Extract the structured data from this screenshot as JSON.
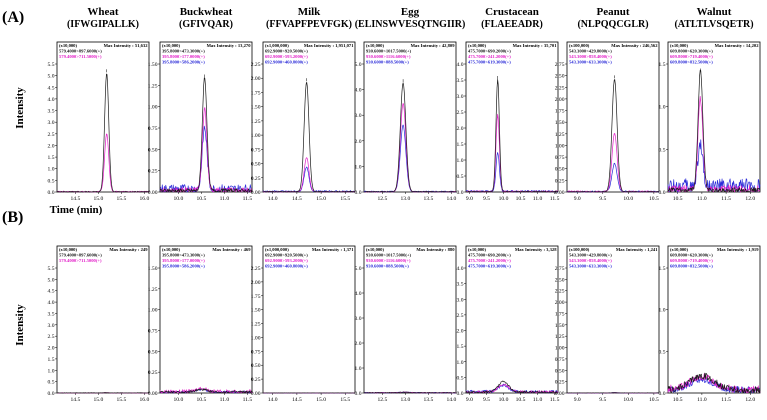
{
  "colors": {
    "black_trace": "#1a1a1a",
    "magenta_trace": "#e21ec8",
    "blue_trace": "#2a2ad8",
    "frame": "#000000"
  },
  "panel_labels": [
    "(A)",
    "(B)"
  ],
  "axes": {
    "y_title": "Intensity",
    "x_title": "Time (min)"
  },
  "chart_data": [
    {
      "row": "A",
      "column": 0,
      "type": "line",
      "allergen": "Wheat",
      "peptide": "(IFWGIPALLK)",
      "scale": "(x10,000)",
      "max_intensity": "Max Intensity : 51,632",
      "transitions": [
        "579.4000>897.6000(+)",
        "579.4000>711.5000(+)"
      ],
      "transition_colors": [
        "#1a1a1a",
        "#e21ec8"
      ],
      "xlim": [
        14.1,
        16.1
      ],
      "ylim": [
        0,
        5.5
      ],
      "xticks": [
        "14.5",
        "15.0",
        "15.5",
        "16.0"
      ],
      "yticks": [
        "0.0",
        "0.5",
        "1.0",
        "1.5",
        "2.0",
        "2.5",
        "3.0",
        "3.5",
        "4.0",
        "4.5",
        "5.0",
        "5.5"
      ],
      "ytick_values": [
        0,
        0.5,
        1,
        1.5,
        2,
        2.5,
        3,
        3.5,
        4,
        4.5,
        5,
        5.5
      ],
      "peak_rt": 15.18,
      "peak_width": 0.045,
      "series": [
        {
          "name": "579.4000>897.6000(+)",
          "peak": 5.1,
          "noise": 0.02
        },
        {
          "name": "579.4000>711.5000(+)",
          "peak": 2.5,
          "noise": 0.03
        }
      ]
    },
    {
      "row": "A",
      "column": 1,
      "type": "line",
      "allergen": "Buckwheat",
      "peptide": "(GFIVQAR)",
      "scale": "(x10,000)",
      "max_intensity": "Max Intensity : 13,270",
      "transitions": [
        "395.8000>473.3000(+)",
        "395.8000>177.0000(+)",
        "395.8000>586.2000(+)"
      ],
      "transition_colors": [
        "#1a1a1a",
        "#e21ec8",
        "#2a2ad8"
      ],
      "xlim": [
        9.6,
        11.6
      ],
      "ylim": [
        0,
        1.5
      ],
      "xticks": [
        "10.0",
        "10.5",
        "11.0",
        "11.5"
      ],
      "yticks": [
        "0.00",
        "0.25",
        "0.50",
        "0.75",
        "1.00",
        "1.25",
        "1.50"
      ],
      "ytick_values": [
        0,
        0.25,
        0.5,
        0.75,
        1,
        1.25,
        1.5
      ],
      "peak_rt": 10.57,
      "peak_width": 0.05,
      "series": [
        {
          "name": "395.8000>473.3000(+)",
          "peak": 1.33,
          "noise": 0.03
        },
        {
          "name": "395.8000>177.0000(+)",
          "peak": 0.95,
          "noise": 0.04
        },
        {
          "name": "395.8000>586.2000(+)",
          "peak": 0.72,
          "noise": 0.07
        }
      ]
    },
    {
      "row": "A",
      "column": 2,
      "type": "line",
      "allergen": "Milk",
      "peptide": "(FFVAPFPEVFGK)",
      "scale": "(x1,000,000)",
      "max_intensity": "Max Intensity : 1,951,071",
      "transitions": [
        "692.9000>920.5000(+)",
        "692.9000>593.2000(+)",
        "692.9000>460.8000(+)"
      ],
      "transition_colors": [
        "#1a1a1a",
        "#e21ec8",
        "#2a2ad8"
      ],
      "xlim": [
        13.8,
        15.7
      ],
      "ylim": [
        0,
        2.25
      ],
      "xticks": [
        "14.0",
        "14.5",
        "15.0",
        "15.5"
      ],
      "yticks": [
        "0.00",
        "0.25",
        "0.50",
        "0.75",
        "1.00",
        "1.25",
        "1.50",
        "1.75",
        "2.00",
        "2.25"
      ],
      "ytick_values": [
        0,
        0.25,
        0.5,
        0.75,
        1,
        1.25,
        1.5,
        1.75,
        2,
        2.25
      ],
      "peak_rt": 14.7,
      "peak_width": 0.05,
      "series": [
        {
          "name": "692.9000>920.5000(+)",
          "peak": 1.93,
          "noise": 0.01
        },
        {
          "name": "692.9000>593.2000(+)",
          "peak": 0.6,
          "noise": 0.01
        },
        {
          "name": "692.9000>460.8000(+)",
          "peak": 0.42,
          "noise": 0.02
        }
      ]
    },
    {
      "row": "A",
      "column": 3,
      "type": "line",
      "allergen": "Egg",
      "peptide": "(ELINSWVESQTNGIIR)",
      "scale": "(x10,000)",
      "max_intensity": "Max Intensity : 42,809",
      "transitions": [
        "930.6000>1017.5000(+)",
        "930.6000>1116.6000(+)",
        "930.6000>888.5000(+)"
      ],
      "transition_colors": [
        "#1a1a1a",
        "#e21ec8",
        "#2a2ad8"
      ],
      "xlim": [
        12.1,
        14.1
      ],
      "ylim": [
        0,
        5.0
      ],
      "xticks": [
        "12.5",
        "13.0",
        "13.5",
        "14.0"
      ],
      "yticks": [
        "0.0",
        "1.0",
        "2.0",
        "3.0",
        "4.0",
        "5.0"
      ],
      "ytick_values": [
        0,
        1,
        2,
        3,
        4,
        5
      ],
      "peak_rt": 12.95,
      "peak_width": 0.06,
      "series": [
        {
          "name": "930.6000>1017.5000(+)",
          "peak": 4.25,
          "noise": 0.02
        },
        {
          "name": "930.6000>1116.6000(+)",
          "peak": 3.45,
          "noise": 0.02
        },
        {
          "name": "930.6000>888.5000(+)",
          "peak": 2.6,
          "noise": 0.03
        }
      ]
    },
    {
      "row": "A",
      "column": 4,
      "type": "line",
      "allergen": "Crustacean",
      "peptide": "(FLAEEADR)",
      "scale": "(x10,000)",
      "max_intensity": "Max Intensity : 35,701",
      "transitions": [
        "475.7000>690.2000(+)",
        "475.7000>241.2000(+)",
        "475.7000>619.3000(+)"
      ],
      "transition_colors": [
        "#1a1a1a",
        "#e21ec8",
        "#2a2ad8"
      ],
      "xlim": [
        8.9,
        11.6
      ],
      "ylim": [
        0,
        4.0
      ],
      "xticks": [
        "9.0",
        "9.5",
        "10.0",
        "10.5",
        "11.0",
        "11.5"
      ],
      "yticks": [
        "0.0",
        "0.5",
        "1.0",
        "1.5",
        "2.0",
        "2.5",
        "3.0",
        "3.5",
        "4.0"
      ],
      "ytick_values": [
        0,
        0.5,
        1,
        1.5,
        2,
        2.5,
        3,
        3.5,
        4
      ],
      "peak_rt": 9.83,
      "peak_width": 0.05,
      "series": [
        {
          "name": "475.7000>690.2000(+)",
          "peak": 3.5,
          "noise": 0.02
        },
        {
          "name": "475.7000>241.2000(+)",
          "peak": 2.4,
          "noise": 0.03
        },
        {
          "name": "475.7000>619.3000(+)",
          "peak": 1.2,
          "noise": 0.04
        }
      ]
    },
    {
      "row": "A",
      "column": 5,
      "type": "line",
      "allergen": "Peanut",
      "peptide": "(NLPQQCGLR)",
      "scale": "(x100,000)",
      "max_intensity": "Max Intensity : 246,562",
      "transitions": [
        "543.3000>429.8000(+)",
        "543.3000>858.4000(+)",
        "543.3000>633.3000(+)"
      ],
      "transition_colors": [
        "#1a1a1a",
        "#e21ec8",
        "#2a2ad8"
      ],
      "xlim": [
        8.8,
        10.6
      ],
      "ylim": [
        0,
        2.75
      ],
      "xticks": [
        "9.0",
        "9.5",
        "10.0",
        "10.5"
      ],
      "yticks": [
        "0.00",
        "0.25",
        "0.50",
        "0.75",
        "1.00",
        "1.25",
        "1.50",
        "1.75",
        "2.00",
        "2.25",
        "2.50",
        "2.75"
      ],
      "ytick_values": [
        0,
        0.25,
        0.5,
        0.75,
        1,
        1.25,
        1.5,
        1.75,
        2,
        2.25,
        2.5,
        2.75
      ],
      "peak_rt": 9.73,
      "peak_width": 0.05,
      "series": [
        {
          "name": "543.3000>429.8000(+)",
          "peak": 2.42,
          "noise": 0.01
        },
        {
          "name": "543.3000>858.4000(+)",
          "peak": 1.25,
          "noise": 0.02
        },
        {
          "name": "543.3000>633.3000(+)",
          "peak": 0.6,
          "noise": 0.02
        }
      ]
    },
    {
      "row": "A",
      "column": 6,
      "type": "line",
      "allergen": "Walnut",
      "peptide": "(ATLTLVSQETR)",
      "scale": "(x10,000)",
      "max_intensity": "Max Intensity : 14,202",
      "transitions": [
        "609.8000>620.3000(+)",
        "609.8000>719.4000(+)",
        "609.8000>832.5000(+)"
      ],
      "transition_colors": [
        "#1a1a1a",
        "#e21ec8",
        "#2a2ad8"
      ],
      "xlim": [
        10.3,
        12.2
      ],
      "ylim": [
        0,
        1.5
      ],
      "xticks": [
        "10.5",
        "11.0",
        "11.5",
        "12.0"
      ],
      "yticks": [
        "0.0",
        "0.5",
        "1.0",
        "1.5"
      ],
      "ytick_values": [
        0,
        0.5,
        1,
        1.5
      ],
      "peak_rt": 10.97,
      "peak_width": 0.05,
      "series": [
        {
          "name": "609.8000>620.3000(+)",
          "peak": 1.4,
          "noise": 0.04
        },
        {
          "name": "609.8000>719.4000(+)",
          "peak": 1.05,
          "noise": 0.06
        },
        {
          "name": "609.8000>832.5000(+)",
          "peak": 0.5,
          "noise": 0.12
        }
      ]
    },
    {
      "row": "B",
      "column": 0,
      "type": "line",
      "allergen": "",
      "peptide": "",
      "scale": "(x10,000)",
      "max_intensity": "Max Intensity : 249",
      "transitions": [
        "579.4000>897.6000(+)",
        "579.4000>711.5000(+)"
      ],
      "transition_colors": [
        "#1a1a1a",
        "#e21ec8"
      ],
      "xlim": [
        14.1,
        16.1
      ],
      "ylim": [
        0,
        5.5
      ],
      "xticks": [
        "14.5",
        "15.0",
        "15.5",
        "16.0"
      ],
      "yticks": [
        "0.0",
        "0.5",
        "1.0",
        "1.5",
        "2.0",
        "2.5",
        "3.0",
        "3.5",
        "4.0",
        "4.5",
        "5.0",
        "5.5"
      ],
      "ytick_values": [
        0,
        0.5,
        1,
        1.5,
        2,
        2.5,
        3,
        3.5,
        4,
        4.5,
        5,
        5.5
      ],
      "peak_rt": 15.18,
      "peak_width": 0.05,
      "series": [
        {
          "name": "579.4000>897.6000(+)",
          "peak": 0.01,
          "noise": 0.01
        },
        {
          "name": "579.4000>711.5000(+)",
          "peak": 0.01,
          "noise": 0.01
        }
      ]
    },
    {
      "row": "B",
      "column": 1,
      "type": "line",
      "allergen": "",
      "peptide": "",
      "scale": "(x10,000)",
      "max_intensity": "Max Intensity : 469",
      "transitions": [
        "395.8000>473.3000(+)",
        "395.8000>177.0000(+)",
        "395.8000>586.2000(+)"
      ],
      "transition_colors": [
        "#1a1a1a",
        "#e21ec8",
        "#2a2ad8"
      ],
      "xlim": [
        9.6,
        11.6
      ],
      "ylim": [
        0,
        1.5
      ],
      "xticks": [
        "10.0",
        "10.5",
        "11.0",
        "11.5"
      ],
      "yticks": [
        "0.00",
        "0.25",
        "0.50",
        "0.75",
        "1.00",
        "1.25",
        "1.50"
      ],
      "ytick_values": [
        0,
        0.25,
        0.5,
        0.75,
        1,
        1.25,
        1.5
      ],
      "peak_rt": 10.5,
      "peak_width": 0.12,
      "series": [
        {
          "name": "395.8000>473.3000(+)",
          "peak": 0.03,
          "noise": 0.02
        },
        {
          "name": "395.8000>177.0000(+)",
          "peak": 0.04,
          "noise": 0.03
        },
        {
          "name": "395.8000>586.2000(+)",
          "peak": 0.03,
          "noise": 0.02
        }
      ]
    },
    {
      "row": "B",
      "column": 2,
      "type": "line",
      "allergen": "",
      "peptide": "",
      "scale": "(x1,000,000)",
      "max_intensity": "Max Intensity : 1,371",
      "transitions": [
        "692.9000>920.5000(+)",
        "692.9000>593.2000(+)",
        "692.9000>460.8000(+)"
      ],
      "transition_colors": [
        "#1a1a1a",
        "#e21ec8",
        "#2a2ad8"
      ],
      "xlim": [
        13.8,
        15.7
      ],
      "ylim": [
        0,
        2.25
      ],
      "xticks": [
        "14.0",
        "14.5",
        "15.0",
        "15.5"
      ],
      "yticks": [
        "0.00",
        "0.25",
        "0.50",
        "0.75",
        "1.00",
        "1.25",
        "1.50",
        "1.75",
        "2.00",
        "2.25"
      ],
      "ytick_values": [
        0,
        0.25,
        0.5,
        0.75,
        1,
        1.25,
        1.5,
        1.75,
        2,
        2.25
      ],
      "peak_rt": 14.7,
      "peak_width": 0.05,
      "series": [
        {
          "name": "692.9000>920.5000(+)",
          "peak": 0.001,
          "noise": 0.002
        },
        {
          "name": "692.9000>593.2000(+)",
          "peak": 0.001,
          "noise": 0.002
        },
        {
          "name": "692.9000>460.8000(+)",
          "peak": 0.001,
          "noise": 0.002
        }
      ]
    },
    {
      "row": "B",
      "column": 3,
      "type": "line",
      "allergen": "",
      "peptide": "",
      "scale": "(x10,000)",
      "max_intensity": "Max Intensity : 880",
      "transitions": [
        "930.6000>1017.5000(+)",
        "930.6000>1116.6000(+)",
        "930.6000>888.5000(+)"
      ],
      "transition_colors": [
        "#1a1a1a",
        "#e21ec8",
        "#2a2ad8"
      ],
      "xlim": [
        12.1,
        14.1
      ],
      "ylim": [
        0,
        5.0
      ],
      "xticks": [
        "12.5",
        "13.0",
        "13.5",
        "14.0"
      ],
      "yticks": [
        "0.0",
        "1.0",
        "2.0",
        "3.0",
        "4.0",
        "5.0"
      ],
      "ytick_values": [
        0,
        1,
        2,
        3,
        4,
        5
      ],
      "peak_rt": 13.0,
      "peak_width": 0.1,
      "series": [
        {
          "name": "930.6000>1017.5000(+)",
          "peak": 0.02,
          "noise": 0.02
        },
        {
          "name": "930.6000>1116.6000(+)",
          "peak": 0.02,
          "noise": 0.02
        },
        {
          "name": "930.6000>888.5000(+)",
          "peak": 0.02,
          "noise": 0.02
        }
      ]
    },
    {
      "row": "B",
      "column": 4,
      "type": "line",
      "allergen": "",
      "peptide": "",
      "scale": "(x10,000)",
      "max_intensity": "Max Intensity : 3,328",
      "transitions": [
        "475.7000>690.2000(+)",
        "475.7000>241.2000(+)",
        "475.7000>619.3000(+)"
      ],
      "transition_colors": [
        "#1a1a1a",
        "#e21ec8",
        "#2a2ad8"
      ],
      "xlim": [
        8.9,
        11.6
      ],
      "ylim": [
        0,
        4.0
      ],
      "xticks": [
        "9.0",
        "9.5",
        "10.0",
        "10.5",
        "11.0",
        "11.5"
      ],
      "yticks": [
        "0.0",
        "0.5",
        "1.0",
        "1.5",
        "2.0",
        "2.5",
        "3.0",
        "3.5",
        "4.0"
      ],
      "ytick_values": [
        0,
        0.5,
        1,
        1.5,
        2,
        2.5,
        3,
        3.5,
        4
      ],
      "peak_rt": 10.0,
      "peak_width": 0.15,
      "series": [
        {
          "name": "475.7000>690.2000(+)",
          "peak": 0.33,
          "noise": 0.05
        },
        {
          "name": "475.7000>241.2000(+)",
          "peak": 0.25,
          "noise": 0.06
        },
        {
          "name": "475.7000>619.3000(+)",
          "peak": 0.2,
          "noise": 0.07
        }
      ]
    },
    {
      "row": "B",
      "column": 5,
      "type": "line",
      "allergen": "",
      "peptide": "",
      "scale": "(x100,000)",
      "max_intensity": "Max Intensity : 1,241",
      "transitions": [
        "543.3000>429.8000(+)",
        "543.3000>858.4000(+)",
        "543.3000>633.3000(+)"
      ],
      "transition_colors": [
        "#1a1a1a",
        "#e21ec8",
        "#2a2ad8"
      ],
      "xlim": [
        8.8,
        10.6
      ],
      "ylim": [
        0,
        2.75
      ],
      "xticks": [
        "9.0",
        "9.5",
        "10.0",
        "10.5"
      ],
      "yticks": [
        "0.00",
        "0.25",
        "0.50",
        "0.75",
        "1.00",
        "1.25",
        "1.50",
        "1.75",
        "2.00",
        "2.25",
        "2.50",
        "2.75"
      ],
      "ytick_values": [
        0,
        0.25,
        0.5,
        0.75,
        1,
        1.25,
        1.5,
        1.75,
        2,
        2.25,
        2.5,
        2.75
      ],
      "peak_rt": 9.73,
      "peak_width": 0.05,
      "series": [
        {
          "name": "543.3000>429.8000(+)",
          "peak": 0.005,
          "noise": 0.004
        },
        {
          "name": "543.3000>858.4000(+)",
          "peak": 0.005,
          "noise": 0.004
        },
        {
          "name": "543.3000>633.3000(+)",
          "peak": 0.005,
          "noise": 0.004
        }
      ]
    },
    {
      "row": "B",
      "column": 6,
      "type": "line",
      "allergen": "",
      "peptide": "",
      "scale": "(x10,000)",
      "max_intensity": "Max Intensity : 1,919",
      "transitions": [
        "609.8000>620.3000(+)",
        "609.8000>719.4000(+)",
        "609.8000>832.5000(+)"
      ],
      "transition_colors": [
        "#1a1a1a",
        "#e21ec8",
        "#2a2ad8"
      ],
      "xlim": [
        10.3,
        12.2
      ],
      "ylim": [
        0,
        1.5
      ],
      "xticks": [
        "10.5",
        "11.0",
        "11.5",
        "12.0"
      ],
      "yticks": [
        "0.0",
        "0.5",
        "1.0",
        "1.5"
      ],
      "ytick_values": [
        0,
        0.5,
        1,
        1.5
      ],
      "peak_rt": 11.0,
      "peak_width": 0.25,
      "series": [
        {
          "name": "609.8000>620.3000(+)",
          "peak": 0.17,
          "noise": 0.06
        },
        {
          "name": "609.8000>719.4000(+)",
          "peak": 0.15,
          "noise": 0.07
        },
        {
          "name": "609.8000>832.5000(+)",
          "peak": 0.12,
          "noise": 0.06
        }
      ]
    }
  ]
}
